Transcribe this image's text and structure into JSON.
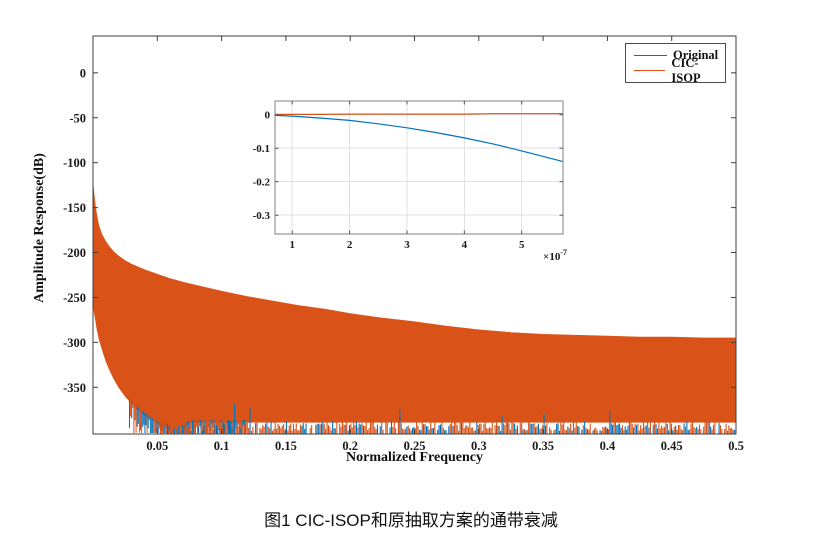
{
  "caption": "图1 CIC-ISOP和原抽取方案的通带衰减",
  "chart_data": {
    "type": "line",
    "title": "",
    "xlabel": "Normalized Frequency",
    "ylabel": "Amplitude Response(dB)",
    "xlim": [
      0,
      0.5
    ],
    "ylim": [
      -402,
      41
    ],
    "grid": false,
    "xticks": {
      "values": [
        0.05,
        0.1,
        0.15,
        0.2,
        0.25,
        0.3,
        0.35,
        0.4,
        0.45,
        0.5
      ],
      "labels": [
        "0.05",
        "0.1",
        "0.15",
        "0.2",
        "0.25",
        "0.3",
        "0.35",
        "0.4",
        "0.45",
        "0.5"
      ]
    },
    "yticks": {
      "values": [
        0,
        -50,
        -100,
        -150,
        -200,
        -250,
        -300,
        -350
      ],
      "labels": [
        "0",
        "-50",
        "-100",
        "-150",
        "-200",
        "-250",
        "-300",
        "-350"
      ]
    },
    "legend": {
      "position": "northeast",
      "items": [
        {
          "label": "Original",
          "color": "#0072BD"
        },
        {
          "label": "CIC-ISOP",
          "color": "#D95319"
        }
      ]
    },
    "series": [
      {
        "name": "Original",
        "color": "#0072BD",
        "description": "dense sidelobe comb, visible as blue spikes at band bottom and below lower envelope"
      },
      {
        "name": "CIC-ISOP",
        "color": "#D95319",
        "description": "dense sidelobe comb rendered as solid band between envelopes",
        "envelope_top": [
          [
            0,
            -124
          ],
          [
            0.001,
            -138
          ],
          [
            0.002,
            -150
          ],
          [
            0.003,
            -159
          ],
          [
            0.004,
            -166
          ],
          [
            0.005,
            -172
          ],
          [
            0.007,
            -180
          ],
          [
            0.01,
            -188
          ],
          [
            0.013,
            -194
          ],
          [
            0.016,
            -199
          ],
          [
            0.02,
            -204
          ],
          [
            0.025,
            -209
          ],
          [
            0.03,
            -213
          ],
          [
            0.04,
            -219
          ],
          [
            0.05,
            -224
          ],
          [
            0.06,
            -229
          ],
          [
            0.07,
            -233
          ],
          [
            0.085,
            -238
          ],
          [
            0.1,
            -243
          ],
          [
            0.12,
            -249
          ],
          [
            0.14,
            -254
          ],
          [
            0.16,
            -259
          ],
          [
            0.18,
            -263
          ],
          [
            0.2,
            -268
          ],
          [
            0.225,
            -273
          ],
          [
            0.25,
            -277
          ],
          [
            0.275,
            -282
          ],
          [
            0.3,
            -286
          ],
          [
            0.325,
            -289
          ],
          [
            0.35,
            -291
          ],
          [
            0.375,
            -292
          ],
          [
            0.4,
            -293
          ],
          [
            0.425,
            -294
          ],
          [
            0.45,
            -294
          ],
          [
            0.475,
            -295
          ],
          [
            0.5,
            -295
          ]
        ],
        "envelope_bottom": [
          [
            0,
            -258
          ],
          [
            0.003,
            -285
          ],
          [
            0.005,
            -298
          ],
          [
            0.008,
            -312
          ],
          [
            0.01,
            -321
          ],
          [
            0.013,
            -331
          ],
          [
            0.016,
            -340
          ],
          [
            0.02,
            -350
          ],
          [
            0.025,
            -360
          ],
          [
            0.03,
            -368
          ],
          [
            0.035,
            -375
          ],
          [
            0.04,
            -381
          ],
          [
            0.045,
            -386
          ],
          [
            0.05,
            -390
          ],
          [
            0.055,
            -394
          ],
          [
            0.06,
            -397
          ],
          [
            0.065,
            -399
          ],
          [
            0.075,
            -389
          ],
          [
            0.5,
            -389
          ]
        ]
      }
    ],
    "inset": {
      "xlim": [
        0.7,
        5.72
      ],
      "x_unit_multiplier": "×10",
      "x_unit_exponent": "-7",
      "ylim": [
        -0.356,
        0.041
      ],
      "xticks": {
        "values": [
          1,
          2,
          3,
          4,
          5
        ],
        "labels": [
          "1",
          "2",
          "3",
          "4",
          "5"
        ]
      },
      "yticks": {
        "values": [
          0,
          -0.1,
          -0.2,
          -0.3
        ],
        "labels": [
          "0",
          "-0.1",
          "-0.2",
          "-0.3"
        ]
      },
      "grid": true,
      "series": [
        {
          "name": "Original",
          "color": "#0072BD",
          "x": [
            0.7,
            1,
            1.5,
            2,
            2.5,
            3,
            3.5,
            4,
            4.5,
            5,
            5.5,
            5.72
          ],
          "y": [
            -0.002,
            -0.004,
            -0.01,
            -0.017,
            -0.027,
            -0.039,
            -0.053,
            -0.069,
            -0.087,
            -0.108,
            -0.13,
            -0.14
          ]
        },
        {
          "name": "CIC-ISOP",
          "color": "#D95319",
          "x": [
            0.7,
            1,
            1.5,
            2,
            2.5,
            3,
            3.5,
            4,
            4.5,
            5,
            5.5,
            5.72
          ],
          "y": [
            0.001,
            0.001,
            0.001,
            0.002,
            0.002,
            0.002,
            0.002,
            0.002,
            0.003,
            0.003,
            0.003,
            0.003
          ]
        }
      ]
    },
    "colors": {
      "axis": "#3d3d3d",
      "inset_axis": "#808080",
      "inset_grid": "#e2e2e2",
      "tick_label": "#1a1a1a"
    }
  }
}
